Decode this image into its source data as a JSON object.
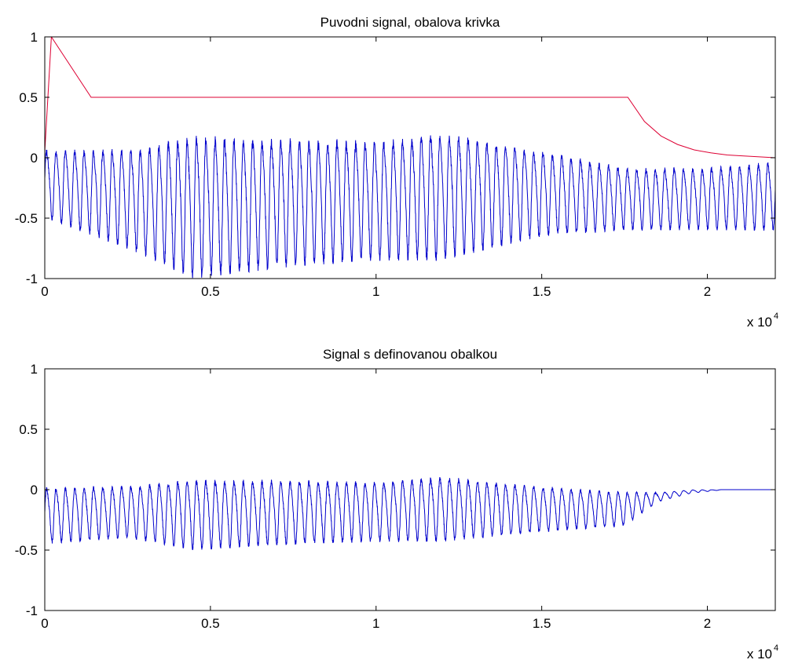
{
  "chart_data": [
    {
      "type": "line",
      "title": "Puvodni signal, obalova krivka",
      "xlabel": "",
      "ylabel": "",
      "x_multiplier_label": "x 10",
      "x_multiplier_exponent": "4",
      "xlim": [
        0,
        22050
      ],
      "ylim": [
        -1,
        1
      ],
      "xticks": [
        0,
        5000,
        10000,
        15000,
        20000
      ],
      "xtick_labels": [
        "0",
        "0.5",
        "1",
        "1.5",
        "2"
      ],
      "yticks": [
        -1,
        -0.5,
        0,
        0.5,
        1
      ],
      "ytick_labels": [
        "-1",
        "-0.5",
        "0",
        "0.5",
        "1"
      ],
      "grid": false,
      "signal_model": {
        "num_cycles": 78,
        "offset": -0.3,
        "amplitude_points": [
          [
            0,
            0.2
          ],
          [
            600,
            0.25
          ],
          [
            1000,
            0.4
          ],
          [
            3700,
            0.45
          ],
          [
            3900,
            0.55
          ],
          [
            4500,
            0.6
          ],
          [
            6000,
            0.55
          ],
          [
            9000,
            0.5
          ],
          [
            11500,
            0.55
          ],
          [
            12500,
            0.5
          ],
          [
            15000,
            0.4
          ],
          [
            16500,
            0.3
          ],
          [
            22050,
            0.25
          ]
        ],
        "harmonic_ratio": 0.15,
        "noise": 0.03
      },
      "series": [
        {
          "role": "signal",
          "color": "#0000cc",
          "x": [
            0,
            2500,
            4500,
            7500,
            10000,
            12000,
            15000,
            17500,
            20000,
            22050
          ],
          "y_max": [
            0.1,
            0.12,
            0.25,
            0.22,
            0.2,
            0.28,
            0.1,
            -0.05,
            -0.05,
            0.0
          ],
          "y_min": [
            -0.5,
            -0.75,
            -1.0,
            -0.9,
            -0.85,
            -0.85,
            -0.65,
            -0.6,
            -0.6,
            -0.6
          ]
        },
        {
          "role": "envelope",
          "color": "#dd0033",
          "x": [
            0,
            200,
            1400,
            17600,
            18100,
            18600,
            19100,
            19600,
            20100,
            20600,
            21100,
            22050
          ],
          "y": [
            0.05,
            1.0,
            0.5,
            0.5,
            0.3,
            0.18,
            0.11,
            0.065,
            0.04,
            0.023,
            0.014,
            0.0
          ]
        }
      ]
    },
    {
      "type": "line",
      "title": "Signal s definovanou obalkou",
      "xlabel": "",
      "ylabel": "",
      "x_multiplier_label": "x 10",
      "x_multiplier_exponent": "4",
      "xlim": [
        0,
        22050
      ],
      "ylim": [
        -1,
        1
      ],
      "xticks": [
        0,
        5000,
        10000,
        15000,
        20000
      ],
      "xtick_labels": [
        "0",
        "0.5",
        "1",
        "1.5",
        "2"
      ],
      "yticks": [
        -1,
        -0.5,
        0,
        0.5,
        1
      ],
      "ytick_labels": [
        "-1",
        "-0.5",
        "0",
        "0.5",
        "1"
      ],
      "grid": false,
      "series": [
        {
          "role": "signal",
          "color": "#0000cc",
          "x": [
            0,
            2500,
            4500,
            7500,
            10000,
            12000,
            15000,
            17500,
            18500,
            19500,
            20500,
            22050
          ],
          "y_max": [
            0.05,
            0.06,
            0.12,
            0.11,
            0.1,
            0.14,
            0.05,
            0.0,
            -0.02,
            0.0,
            0.0,
            0.0
          ],
          "y_min": [
            -0.45,
            -0.4,
            -0.5,
            -0.45,
            -0.43,
            -0.43,
            -0.35,
            -0.3,
            -0.1,
            -0.03,
            0.0,
            0.0
          ]
        }
      ]
    }
  ]
}
